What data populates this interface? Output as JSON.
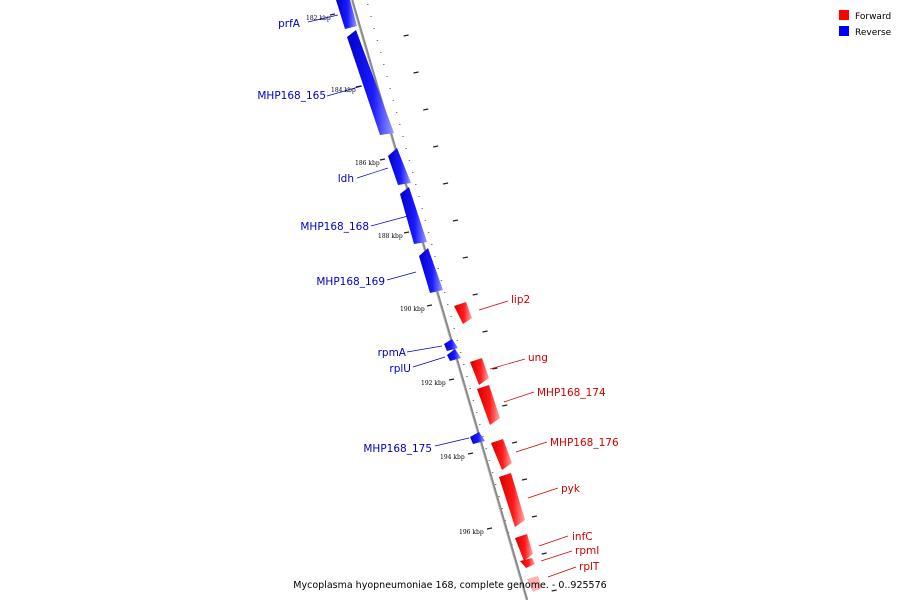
{
  "legend": {
    "items": [
      {
        "label": "Forward",
        "color": "#ff0000"
      },
      {
        "label": "Reverse",
        "color": "#0000ff"
      }
    ]
  },
  "caption": "Mycoplasma hyopneumoniae 168, complete genome. - 0..925576",
  "backbone_color": "#888888",
  "genes": [
    {
      "name": "prfA",
      "strand": "reverse"
    },
    {
      "name": "MHP168_165",
      "strand": "reverse"
    },
    {
      "name": "ldh",
      "strand": "reverse"
    },
    {
      "name": "MHP168_168",
      "strand": "reverse"
    },
    {
      "name": "MHP168_169",
      "strand": "reverse"
    },
    {
      "name": "rpmA",
      "strand": "reverse"
    },
    {
      "name": "rplU",
      "strand": "reverse"
    },
    {
      "name": "MHP168_175",
      "strand": "reverse"
    },
    {
      "name": "lip2",
      "strand": "forward"
    },
    {
      "name": "ung",
      "strand": "forward"
    },
    {
      "name": "MHP168_174",
      "strand": "forward"
    },
    {
      "name": "MHP168_176",
      "strand": "forward"
    },
    {
      "name": "pyk",
      "strand": "forward"
    },
    {
      "name": "infC",
      "strand": "forward"
    },
    {
      "name": "rpmI",
      "strand": "forward"
    },
    {
      "name": "rplT",
      "strand": "forward"
    }
  ],
  "ticks": [
    "182 kbp",
    "184 kbp",
    "186 kbp",
    "188 kbp",
    "190 kbp",
    "192 kbp",
    "194 kbp",
    "196 kbp"
  ]
}
